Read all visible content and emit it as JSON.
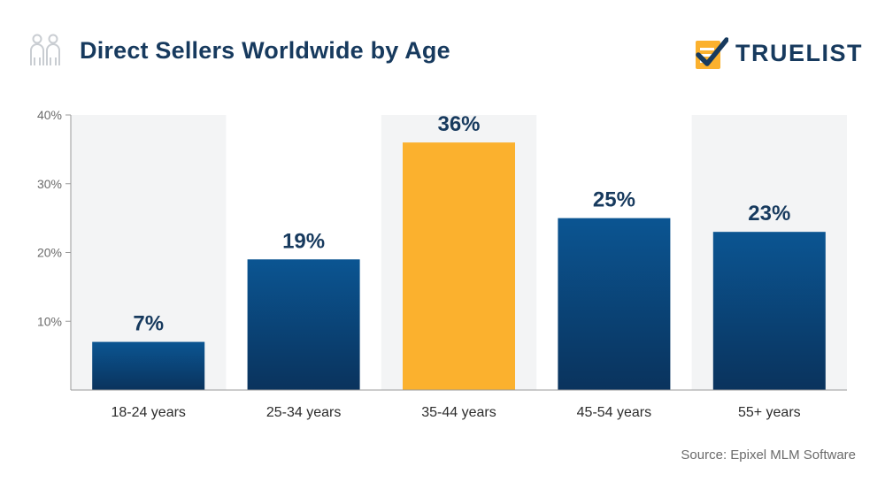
{
  "header": {
    "title": "Direct Sellers Worldwide by Age",
    "brand": "TRUELIST",
    "icon": "people-icon",
    "brand_icon": "checklist-icon"
  },
  "colors": {
    "title": "#173a5e",
    "bar_default": "#0b4d85",
    "bar_highlight": "#fbb12e",
    "band": "#f3f4f5",
    "label": "#173a5e",
    "axis": "#9a9a9a",
    "source": "#6b6b6b"
  },
  "chart_data": {
    "type": "bar",
    "categories": [
      "18-24 years",
      "25-34 years",
      "35-44 years",
      "45-54 years",
      "55+ years"
    ],
    "values": [
      7,
      19,
      36,
      25,
      23
    ],
    "value_labels": [
      "7%",
      "19%",
      "36%",
      "25%",
      "23%"
    ],
    "highlight_index": 2,
    "alternating_bands": true,
    "yticks": [
      10,
      20,
      30,
      40
    ],
    "ytick_labels": [
      "10%",
      "20%",
      "30%",
      "40%"
    ],
    "ylim": [
      0,
      40
    ],
    "grid": false
  },
  "footer": {
    "source": "Source: Epixel MLM Software"
  }
}
